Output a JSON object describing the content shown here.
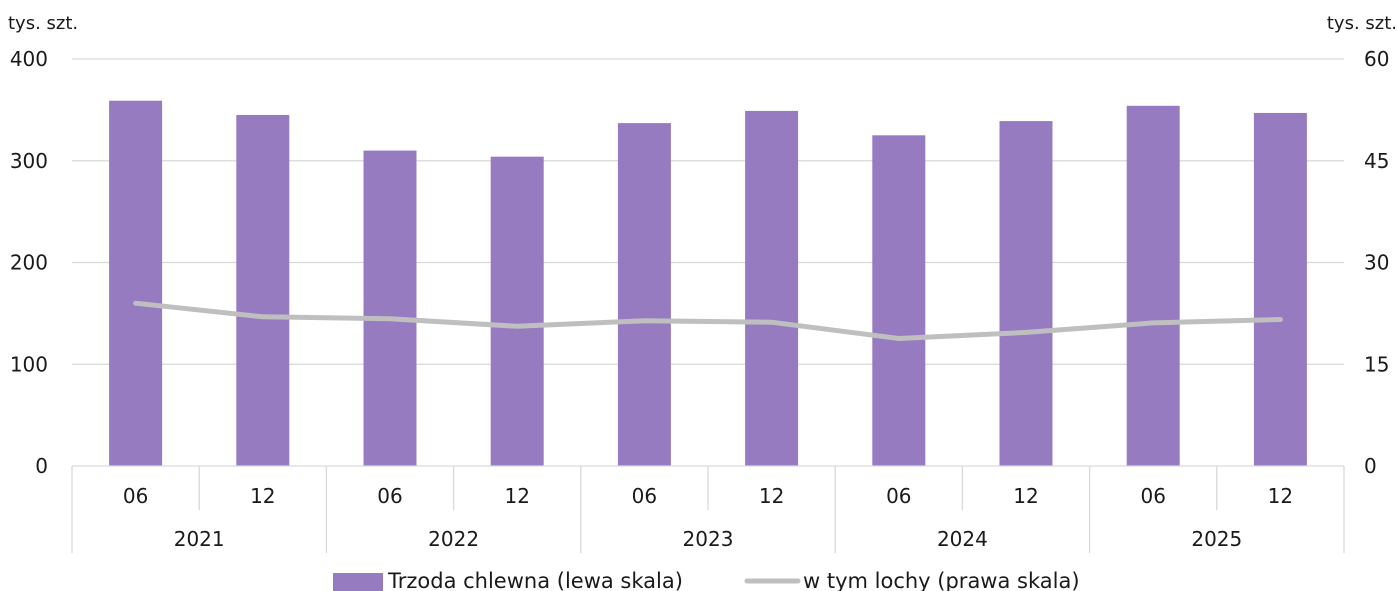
{
  "chart_data": {
    "type": "bar",
    "left_unit": "tys. szt.",
    "right_unit": "tys. szt.",
    "categories": [
      "06",
      "12",
      "06",
      "12",
      "06",
      "12",
      "06",
      "12",
      "06",
      "12"
    ],
    "groups": [
      "2021",
      "2022",
      "2023",
      "2024",
      "2025"
    ],
    "y_left": {
      "min": 0,
      "max": 400,
      "ticks": [
        0,
        100,
        200,
        300,
        400
      ]
    },
    "y_right": {
      "min": 0,
      "max": 60,
      "ticks": [
        0,
        15,
        30,
        45,
        60
      ]
    },
    "grid": true,
    "legend_position": "bottom",
    "series": [
      {
        "name": "Trzoda chlewna (lewa skala)",
        "type": "bar",
        "axis": "left",
        "color": "#967bc1",
        "values": [
          359,
          345,
          310,
          304,
          337,
          349,
          325,
          339,
          354,
          347
        ]
      },
      {
        "name": "w tym lochy (prawa skala)",
        "type": "line",
        "axis": "right",
        "color": "#bfbfbf",
        "values": [
          24.0,
          22.0,
          21.7,
          20.6,
          21.4,
          21.2,
          18.8,
          19.7,
          21.1,
          21.6
        ]
      }
    ]
  }
}
